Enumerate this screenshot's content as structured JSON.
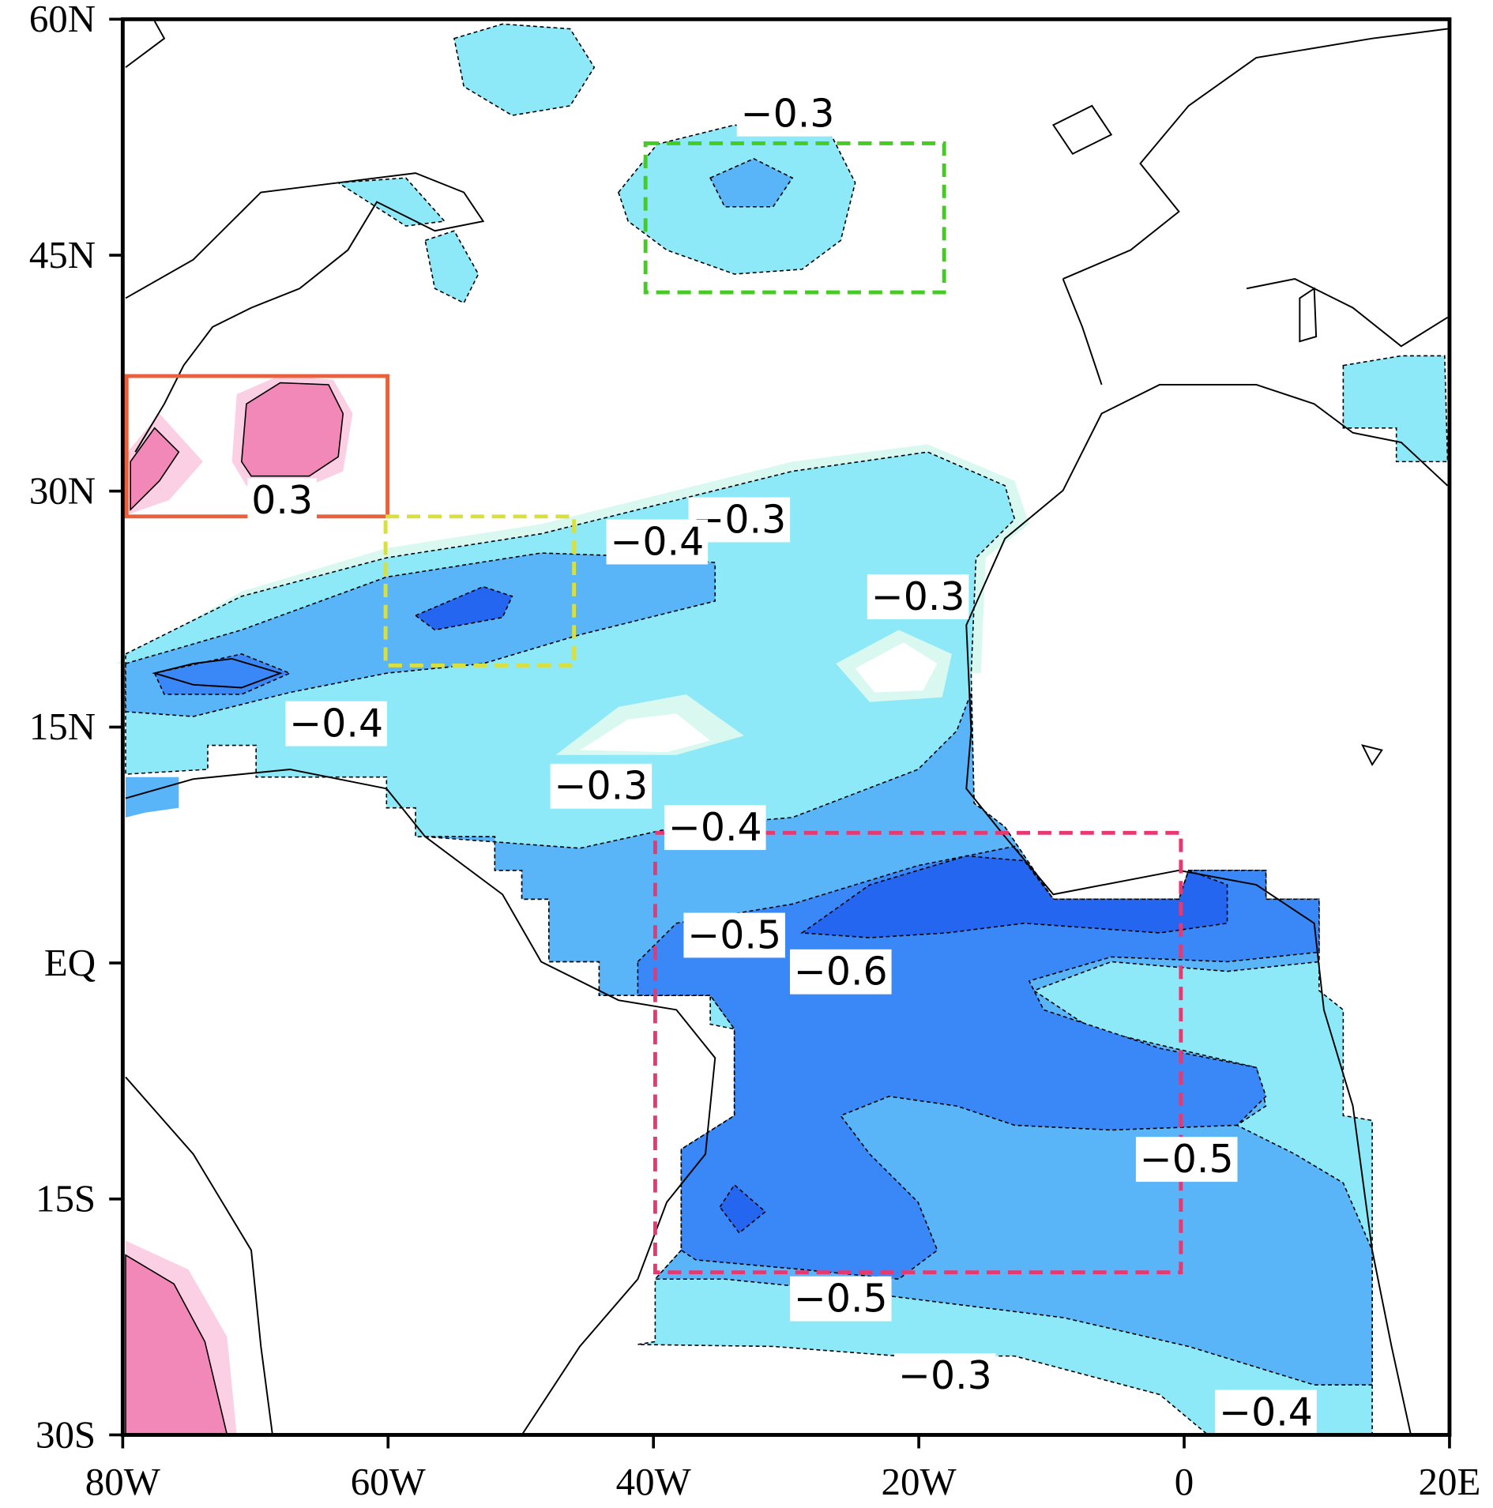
{
  "map": {
    "y_axis_labels": [
      "60N",
      "45N",
      "30N",
      "15N",
      "EQ",
      "15S",
      "30S"
    ],
    "x_axis_labels": [
      "80W",
      "60W",
      "40W",
      "20W",
      "0",
      "20E"
    ],
    "contour_labels": [
      "−0.3",
      "0.3",
      "−0.3",
      "−0.4",
      "−0.3",
      "−0.4",
      "−0.3",
      "−0.4",
      "−0.5",
      "−0.6",
      "−0.5",
      "−0.5",
      "−0.3",
      "−0.4"
    ]
  }
}
